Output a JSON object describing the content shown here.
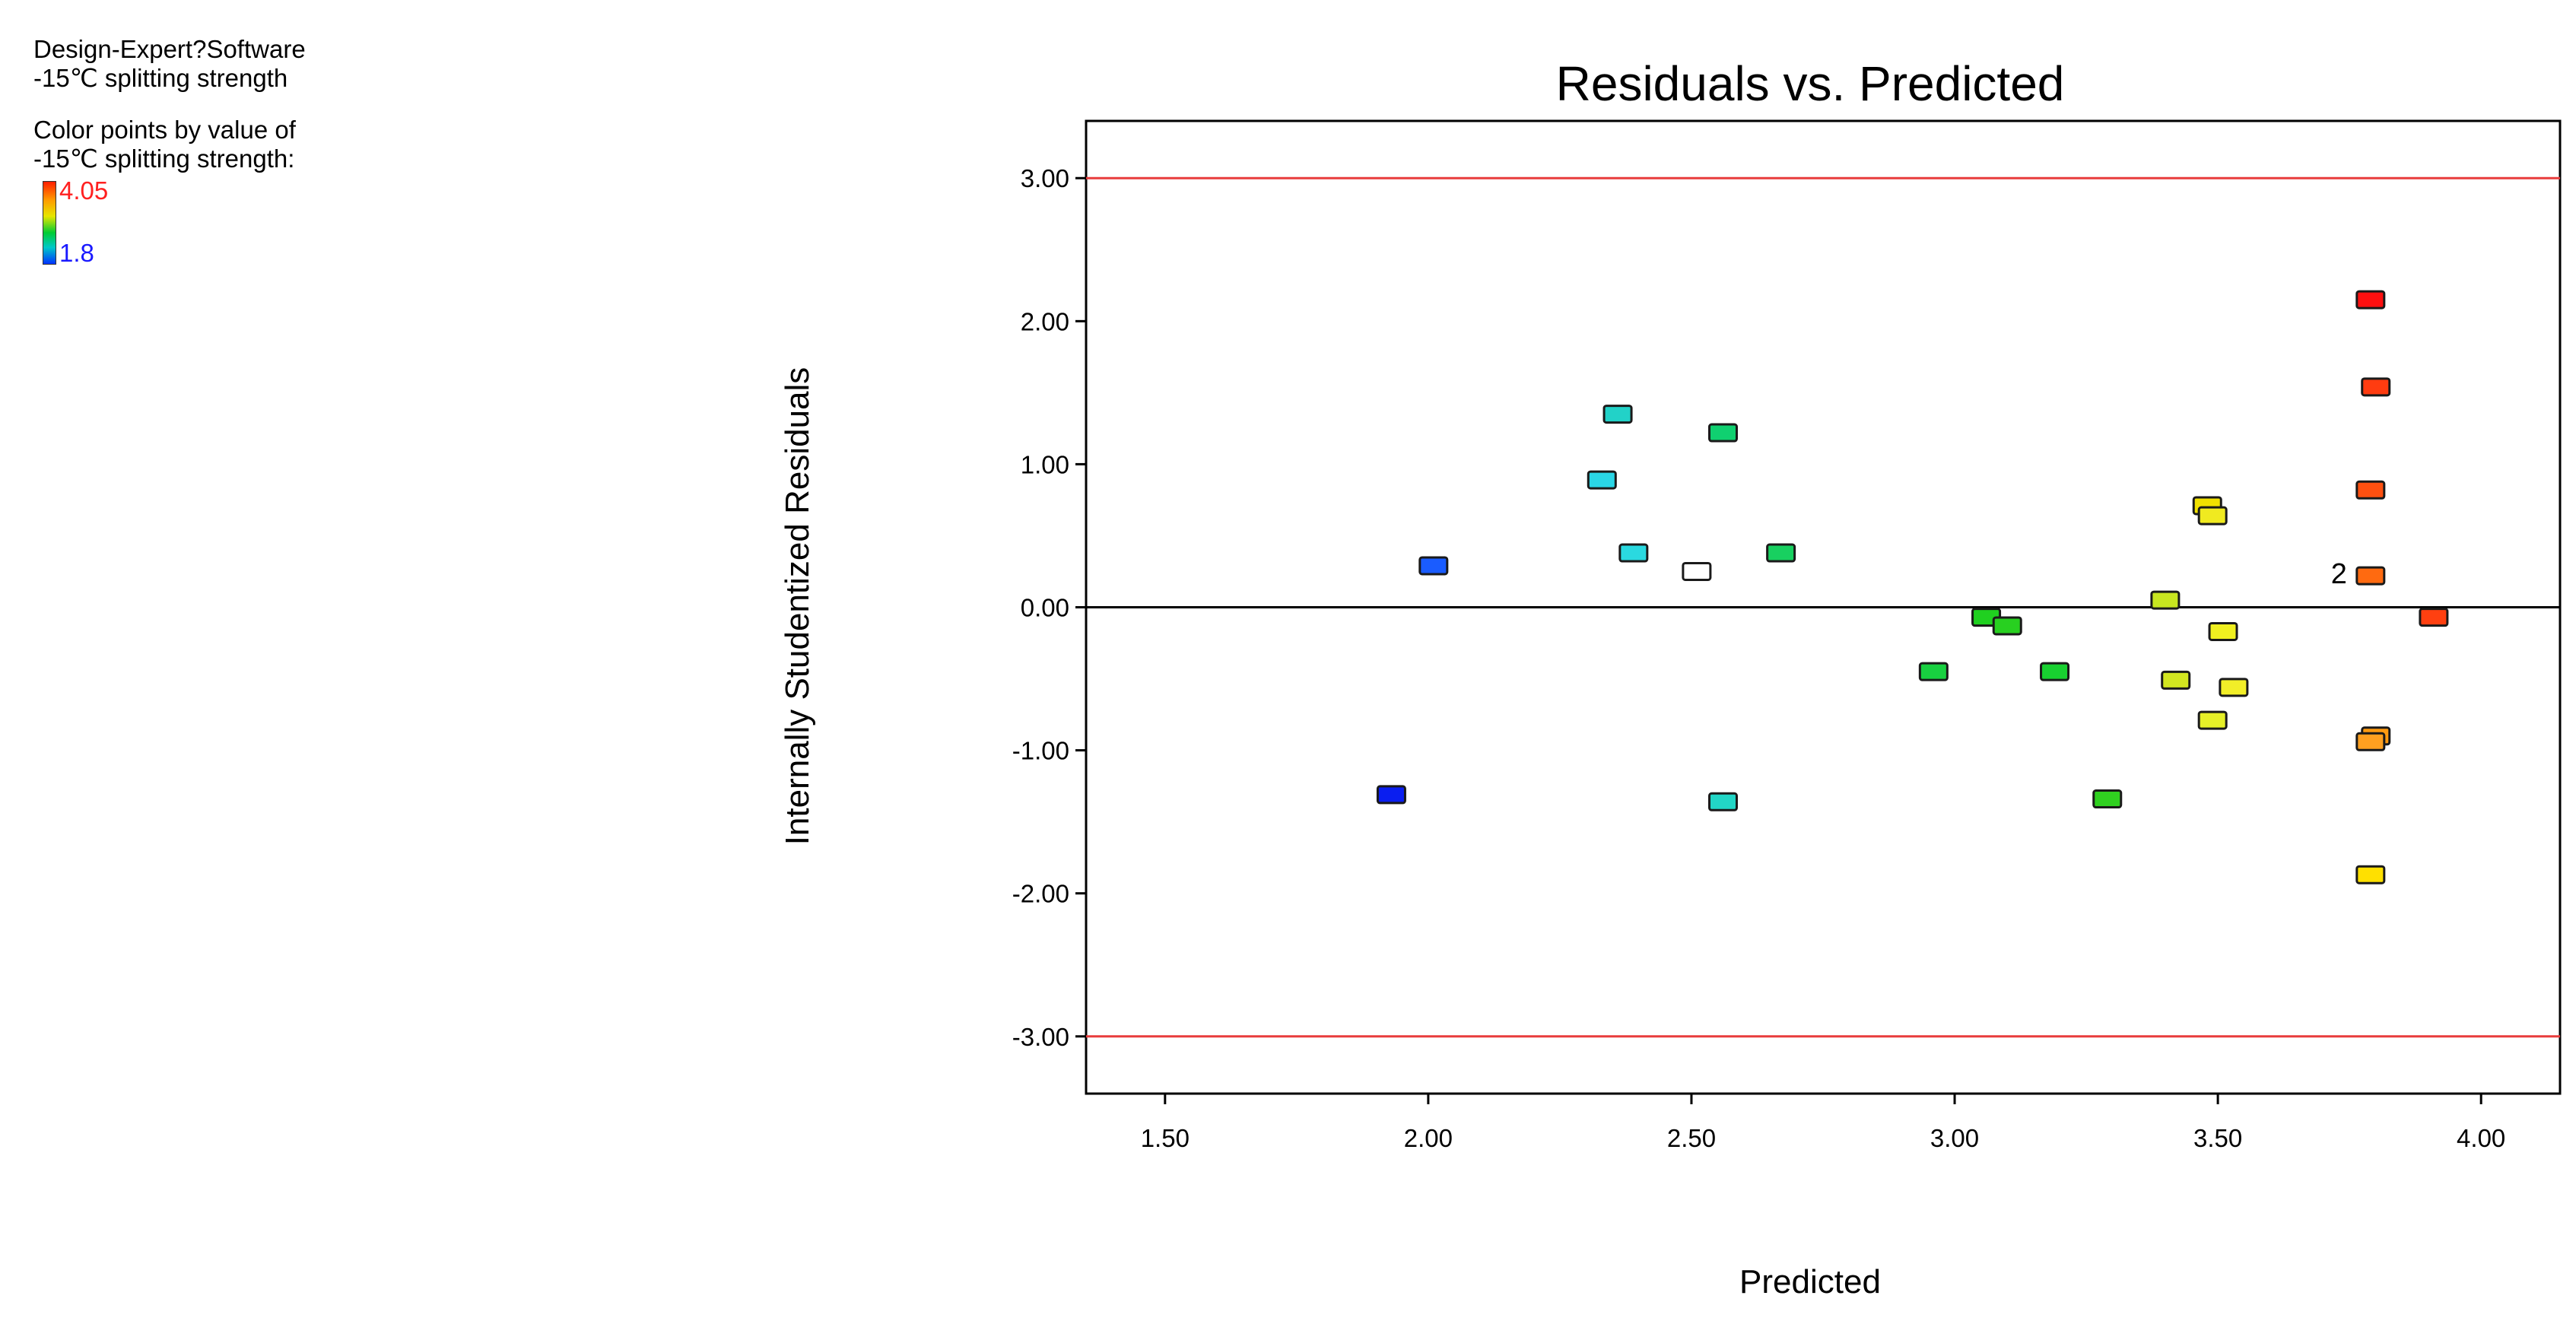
{
  "legend": {
    "software": "Design-Expert?Software",
    "response": "-15℃ splitting strength",
    "color_by_title": "Color points by value of",
    "color_by_response": "-15℃ splitting strength:",
    "max_label": "4.05",
    "min_label": "1.8",
    "max_color": "#ff2020",
    "min_color": "#1a1aff"
  },
  "chart_data": {
    "type": "scatter",
    "title": "Residuals vs. Predicted",
    "xlabel": "Predicted",
    "ylabel": "Internally Studentized Residuals",
    "xlim": [
      1.35,
      4.15
    ],
    "ylim": [
      -3.4,
      3.4
    ],
    "xticks": [
      1.5,
      2.0,
      2.5,
      3.0,
      3.5,
      4.0
    ],
    "xtick_labels": [
      "1.50",
      "2.00",
      "2.50",
      "3.00",
      "3.50",
      "4.00"
    ],
    "yticks": [
      -3,
      -2,
      -1,
      0,
      1,
      2,
      3
    ],
    "ytick_labels": [
      "-3.00",
      "-2.00",
      "-1.00",
      "0.00",
      "1.00",
      "2.00",
      "3.00"
    ],
    "limit_lines": [
      3.0,
      -3.0
    ],
    "limit_color": "#e83c3c",
    "zero_line": 0.0,
    "annotation": {
      "text": "2",
      "x": 3.73,
      "y": 0.23
    },
    "points": [
      {
        "x": 1.93,
        "y": -1.31,
        "color": "#0a1ef0"
      },
      {
        "x": 2.01,
        "y": 0.29,
        "color": "#1a5cff"
      },
      {
        "x": 2.33,
        "y": 0.89,
        "color": "#2ad6e6"
      },
      {
        "x": 2.36,
        "y": 1.35,
        "color": "#22d2c8"
      },
      {
        "x": 2.39,
        "y": 0.38,
        "color": "#2ad9e0"
      },
      {
        "x": 2.51,
        "y": 0.25,
        "color": "#ffffff"
      },
      {
        "x": 2.56,
        "y": 1.22,
        "color": "#10d070"
      },
      {
        "x": 2.56,
        "y": -1.36,
        "color": "#22d6c6"
      },
      {
        "x": 2.67,
        "y": 0.38,
        "color": "#18d060"
      },
      {
        "x": 2.96,
        "y": -0.45,
        "color": "#18d040"
      },
      {
        "x": 3.06,
        "y": -0.07,
        "color": "#20d020"
      },
      {
        "x": 3.1,
        "y": -0.13,
        "color": "#28d020"
      },
      {
        "x": 3.19,
        "y": -0.45,
        "color": "#18d030"
      },
      {
        "x": 3.29,
        "y": -1.34,
        "color": "#30d020"
      },
      {
        "x": 3.4,
        "y": 0.05,
        "color": "#c8e620"
      },
      {
        "x": 3.42,
        "y": -0.51,
        "color": "#d2e620"
      },
      {
        "x": 3.48,
        "y": 0.71,
        "color": "#f0e000"
      },
      {
        "x": 3.49,
        "y": 0.64,
        "color": "#f0ea20"
      },
      {
        "x": 3.49,
        "y": -0.79,
        "color": "#e6f028"
      },
      {
        "x": 3.51,
        "y": -0.17,
        "color": "#f0f020"
      },
      {
        "x": 3.53,
        "y": -0.56,
        "color": "#f2ee28"
      },
      {
        "x": 3.79,
        "y": 2.15,
        "color": "#ff1010"
      },
      {
        "x": 3.8,
        "y": 1.54,
        "color": "#ff3c10"
      },
      {
        "x": 3.79,
        "y": 0.82,
        "color": "#ff5010"
      },
      {
        "x": 3.79,
        "y": 0.22,
        "color": "#ff6a10"
      },
      {
        "x": 3.8,
        "y": -0.9,
        "color": "#ff9a10"
      },
      {
        "x": 3.79,
        "y": -0.94,
        "color": "#ffa020"
      },
      {
        "x": 3.79,
        "y": -1.87,
        "color": "#ffe000"
      },
      {
        "x": 3.91,
        "y": -0.07,
        "color": "#ff4010"
      }
    ]
  }
}
